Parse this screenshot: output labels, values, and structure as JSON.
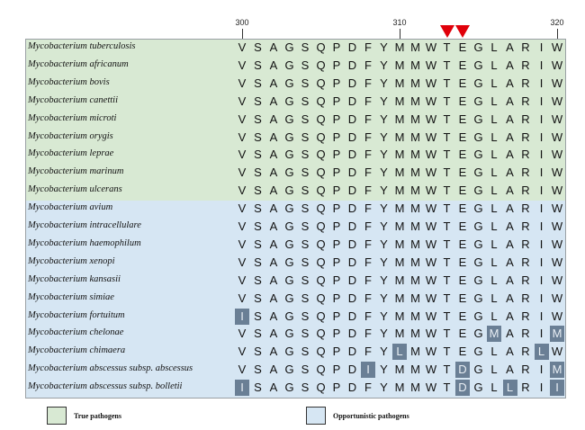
{
  "ruler": {
    "ticks": [
      {
        "label": "300",
        "position": 300
      },
      {
        "label": "310",
        "position": 310
      },
      {
        "label": "320",
        "position": 320
      }
    ],
    "marked_positions": [
      313,
      314
    ],
    "marker_color": "#e0000a"
  },
  "sequence_start": 300,
  "reference_sequence": [
    "V",
    "S",
    "A",
    "G",
    "S",
    "Q",
    "P",
    "D",
    "F",
    "Y",
    "M",
    "M",
    "W",
    "T",
    "E",
    "G",
    "L",
    "A",
    "R",
    "I",
    "W"
  ],
  "rows": [
    {
      "species": "Mycobacterium tuberculosis",
      "group": "true",
      "residues": [
        "V",
        "S",
        "A",
        "G",
        "S",
        "Q",
        "P",
        "D",
        "F",
        "Y",
        "M",
        "M",
        "W",
        "T",
        "E",
        "G",
        "L",
        "A",
        "R",
        "I",
        "W"
      ],
      "highlight": []
    },
    {
      "species": "Mycobacterium africanum",
      "group": "true",
      "residues": [
        "V",
        "S",
        "A",
        "G",
        "S",
        "Q",
        "P",
        "D",
        "F",
        "Y",
        "M",
        "M",
        "W",
        "T",
        "E",
        "G",
        "L",
        "A",
        "R",
        "I",
        "W"
      ],
      "highlight": []
    },
    {
      "species": "Mycobacterium bovis",
      "group": "true",
      "residues": [
        "V",
        "S",
        "A",
        "G",
        "S",
        "Q",
        "P",
        "D",
        "F",
        "Y",
        "M",
        "M",
        "W",
        "T",
        "E",
        "G",
        "L",
        "A",
        "R",
        "I",
        "W"
      ],
      "highlight": []
    },
    {
      "species": "Mycobacterium canettii",
      "group": "true",
      "residues": [
        "V",
        "S",
        "A",
        "G",
        "S",
        "Q",
        "P",
        "D",
        "F",
        "Y",
        "M",
        "M",
        "W",
        "T",
        "E",
        "G",
        "L",
        "A",
        "R",
        "I",
        "W"
      ],
      "highlight": []
    },
    {
      "species": "Mycobacterium microti",
      "group": "true",
      "residues": [
        "V",
        "S",
        "A",
        "G",
        "S",
        "Q",
        "P",
        "D",
        "F",
        "Y",
        "M",
        "M",
        "W",
        "T",
        "E",
        "G",
        "L",
        "A",
        "R",
        "I",
        "W"
      ],
      "highlight": []
    },
    {
      "species": "Mycobacterium orygis",
      "group": "true",
      "residues": [
        "V",
        "S",
        "A",
        "G",
        "S",
        "Q",
        "P",
        "D",
        "F",
        "Y",
        "M",
        "M",
        "W",
        "T",
        "E",
        "G",
        "L",
        "A",
        "R",
        "I",
        "W"
      ],
      "highlight": []
    },
    {
      "species": "Mycobacterium leprae",
      "group": "true",
      "residues": [
        "V",
        "S",
        "A",
        "G",
        "S",
        "Q",
        "P",
        "D",
        "F",
        "Y",
        "M",
        "M",
        "W",
        "T",
        "E",
        "G",
        "L",
        "A",
        "R",
        "I",
        "W"
      ],
      "highlight": []
    },
    {
      "species": "Mycobacterium marinum",
      "group": "true",
      "residues": [
        "V",
        "S",
        "A",
        "G",
        "S",
        "Q",
        "P",
        "D",
        "F",
        "Y",
        "M",
        "M",
        "W",
        "T",
        "E",
        "G",
        "L",
        "A",
        "R",
        "I",
        "W"
      ],
      "highlight": []
    },
    {
      "species": "Mycobacterium ulcerans",
      "group": "true",
      "residues": [
        "V",
        "S",
        "A",
        "G",
        "S",
        "Q",
        "P",
        "D",
        "F",
        "Y",
        "M",
        "M",
        "W",
        "T",
        "E",
        "G",
        "L",
        "A",
        "R",
        "I",
        "W"
      ],
      "highlight": []
    },
    {
      "species": "Mycobacterium avium",
      "group": "opp",
      "residues": [
        "V",
        "S",
        "A",
        "G",
        "S",
        "Q",
        "P",
        "D",
        "F",
        "Y",
        "M",
        "M",
        "W",
        "T",
        "E",
        "G",
        "L",
        "A",
        "R",
        "I",
        "W"
      ],
      "highlight": []
    },
    {
      "species": "Mycobacterium intracellulare",
      "group": "opp",
      "residues": [
        "V",
        "S",
        "A",
        "G",
        "S",
        "Q",
        "P",
        "D",
        "F",
        "Y",
        "M",
        "M",
        "W",
        "T",
        "E",
        "G",
        "L",
        "A",
        "R",
        "I",
        "W"
      ],
      "highlight": []
    },
    {
      "species": "Mycobacterium haemophilum",
      "group": "opp",
      "residues": [
        "V",
        "S",
        "A",
        "G",
        "S",
        "Q",
        "P",
        "D",
        "F",
        "Y",
        "M",
        "M",
        "W",
        "T",
        "E",
        "G",
        "L",
        "A",
        "R",
        "I",
        "W"
      ],
      "highlight": []
    },
    {
      "species": "Mycobacterium xenopi",
      "group": "opp",
      "residues": [
        "V",
        "S",
        "A",
        "G",
        "S",
        "Q",
        "P",
        "D",
        "F",
        "Y",
        "M",
        "M",
        "W",
        "T",
        "E",
        "G",
        "L",
        "A",
        "R",
        "I",
        "W"
      ],
      "highlight": []
    },
    {
      "species": "Mycobacterium kansasii",
      "group": "opp",
      "residues": [
        "V",
        "S",
        "A",
        "G",
        "S",
        "Q",
        "P",
        "D",
        "F",
        "Y",
        "M",
        "M",
        "W",
        "T",
        "E",
        "G",
        "L",
        "A",
        "R",
        "I",
        "W"
      ],
      "highlight": []
    },
    {
      "species": "Mycobacterium simiae",
      "group": "opp",
      "residues": [
        "V",
        "S",
        "A",
        "G",
        "S",
        "Q",
        "P",
        "D",
        "F",
        "Y",
        "M",
        "M",
        "W",
        "T",
        "E",
        "G",
        "L",
        "A",
        "R",
        "I",
        "W"
      ],
      "highlight": []
    },
    {
      "species": "Mycobacterium fortuitum",
      "group": "opp",
      "residues": [
        "I",
        "S",
        "A",
        "G",
        "S",
        "Q",
        "P",
        "D",
        "F",
        "Y",
        "M",
        "M",
        "W",
        "T",
        "E",
        "G",
        "L",
        "A",
        "R",
        "I",
        "W"
      ],
      "highlight": [
        0
      ]
    },
    {
      "species": "Mycobacterium chelonae",
      "group": "opp",
      "residues": [
        "V",
        "S",
        "A",
        "G",
        "S",
        "Q",
        "P",
        "D",
        "F",
        "Y",
        "M",
        "M",
        "W",
        "T",
        "E",
        "G",
        "M",
        "A",
        "R",
        "I",
        "M"
      ],
      "highlight": [
        16,
        20
      ]
    },
    {
      "species": "Mycobacterium chimaera",
      "group": "opp",
      "residues": [
        "V",
        "S",
        "A",
        "G",
        "S",
        "Q",
        "P",
        "D",
        "F",
        "Y",
        "L",
        "M",
        "W",
        "T",
        "E",
        "G",
        "L",
        "A",
        "R",
        "L",
        "W"
      ],
      "highlight": [
        10,
        19
      ]
    },
    {
      "species": "Mycobacterium abscessus subsp. abscessus",
      "group": "opp",
      "residues": [
        "V",
        "S",
        "A",
        "G",
        "S",
        "Q",
        "P",
        "D",
        "I",
        "Y",
        "M",
        "M",
        "W",
        "T",
        "D",
        "G",
        "L",
        "A",
        "R",
        "I",
        "M"
      ],
      "highlight": [
        8,
        14,
        20
      ]
    },
    {
      "species": "Mycobacterium abscessus subsp. bolletii",
      "group": "opp",
      "residues": [
        "I",
        "S",
        "A",
        "G",
        "S",
        "Q",
        "P",
        "D",
        "F",
        "Y",
        "M",
        "M",
        "W",
        "T",
        "D",
        "G",
        "L",
        "L",
        "R",
        "I",
        "I"
      ],
      "highlight": [
        0,
        14,
        17,
        20
      ]
    }
  ],
  "legend": {
    "true_label": "True pathogens",
    "opp_label": "Opportunistic pathogens"
  },
  "colors": {
    "true_pathogens": "#d8e9d3",
    "opportunistic_pathogens": "#d6e6f3",
    "substitution": "#6a7f95"
  }
}
